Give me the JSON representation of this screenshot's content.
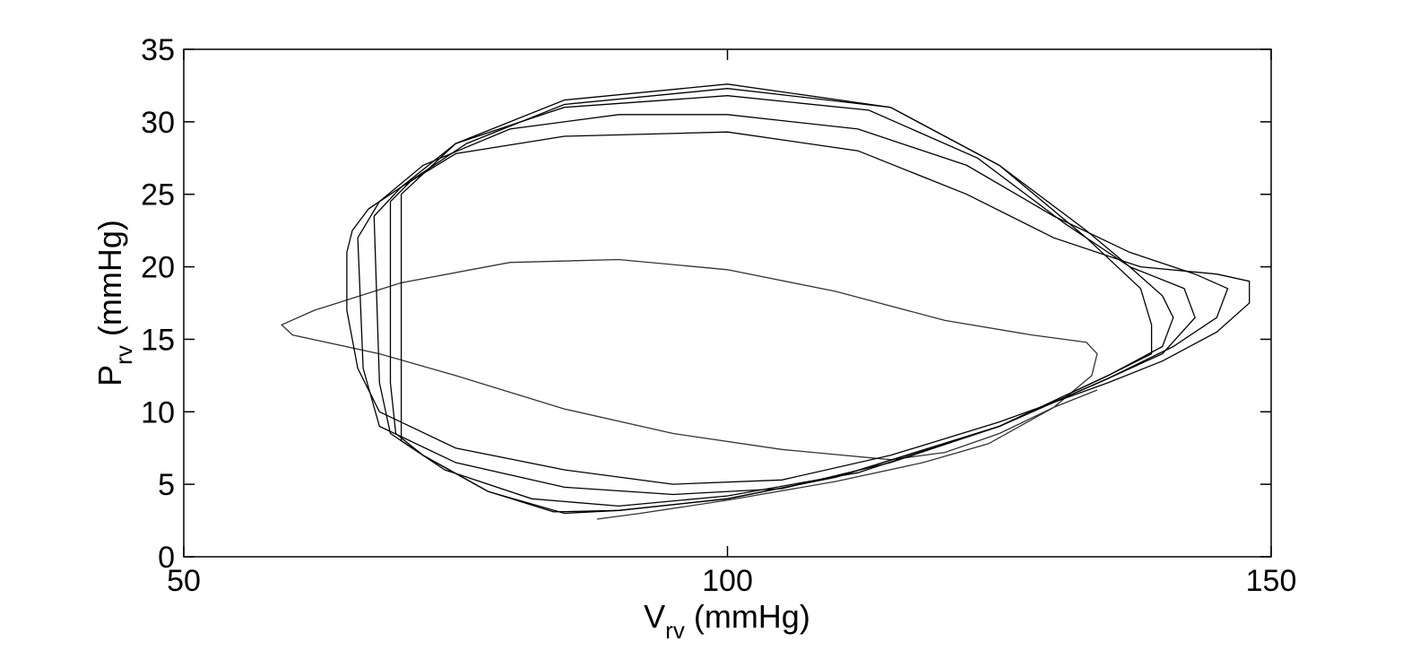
{
  "chart_data": {
    "type": "line",
    "xlabel": [
      "V",
      "rv",
      " (mmHg)"
    ],
    "ylabel": [
      "P",
      "rv",
      " (mmHg)"
    ],
    "xlim": [
      50,
      150
    ],
    "xticks": [
      50,
      100,
      150
    ],
    "ylim": [
      0,
      35
    ],
    "yticks": [
      0,
      5,
      10,
      15,
      20,
      25,
      30,
      35
    ],
    "series": [
      {
        "color": "#333333",
        "x": [
          88,
          92,
          100,
          110,
          118,
          124,
          130,
          133.5,
          134,
          133,
          128,
          120,
          110,
          100,
          90,
          80,
          70,
          62,
          59,
          60,
          68,
          75,
          85,
          95,
          105,
          115,
          120,
          125,
          130,
          134
        ],
        "values": [
          2.6,
          3,
          3.9,
          5.2,
          6.5,
          7.8,
          10.3,
          12.5,
          14,
          14.8,
          15.3,
          16.3,
          18.3,
          19.8,
          20.5,
          20.3,
          18.9,
          17,
          16,
          15.3,
          14,
          12.5,
          10.2,
          8.5,
          7.4,
          6.7,
          7.2,
          8.5,
          10.3,
          11.5
        ]
      },
      {
        "color": "#000000",
        "x": [
          65,
          65.5,
          67,
          70,
          75,
          85,
          100,
          112,
          122,
          130,
          138,
          145,
          148,
          148,
          145,
          140,
          135,
          125,
          115,
          105,
          95,
          85,
          75,
          68,
          66,
          65,
          65
        ],
        "values": [
          21,
          22.5,
          24,
          25.5,
          27.8,
          29,
          29.3,
          28,
          25,
          22,
          20,
          19.5,
          19,
          17.5,
          15.5,
          13.5,
          12,
          9.3,
          7,
          5.3,
          5,
          6,
          7.5,
          10,
          13,
          17,
          21
        ]
      },
      {
        "color": "#000000",
        "x": [
          66,
          68,
          72,
          80,
          90,
          100,
          112,
          122,
          130,
          137,
          143,
          146,
          145,
          141,
          135,
          125,
          115,
          105,
          95,
          85,
          75,
          68,
          66.5,
          66
        ],
        "values": [
          22,
          24.5,
          27,
          29.5,
          30.5,
          30.5,
          29.5,
          27,
          23.5,
          21,
          19.5,
          18.5,
          16.5,
          14.5,
          12.3,
          9,
          6.5,
          4.7,
          4.3,
          4.8,
          6.5,
          9,
          13,
          22
        ]
      },
      {
        "color": "#000000",
        "x": [
          67.5,
          70,
          75,
          85,
          100,
          113,
          123,
          131,
          137,
          142,
          143,
          140,
          135,
          125,
          112,
          100,
          90,
          82,
          74,
          69,
          68,
          67.5
        ],
        "values": [
          23.5,
          25.5,
          28.5,
          31,
          31.8,
          30.8,
          27.5,
          23,
          20,
          18.5,
          16.5,
          14,
          12.3,
          9,
          5.8,
          4.2,
          3.5,
          4,
          6,
          8.5,
          12,
          23.5
        ]
      },
      {
        "color": "#000000",
        "x": [
          69,
          71,
          76,
          85,
          100,
          115,
          125,
          133,
          137,
          140,
          141,
          140,
          135,
          125,
          110,
          100,
          90,
          84,
          78,
          72,
          69.5,
          69,
          69
        ],
        "values": [
          24.5,
          26,
          28.5,
          31.2,
          32.3,
          31,
          27,
          22.5,
          20,
          18,
          16.5,
          14.5,
          12.5,
          9,
          5.5,
          4,
          3.2,
          3.1,
          4.5,
          7,
          8.5,
          12,
          24.5
        ]
      },
      {
        "color": "#000000",
        "x": [
          70,
          75,
          85,
          100,
          115,
          125,
          133,
          138,
          139,
          139,
          135,
          125,
          110,
          100,
          90,
          85,
          78,
          72,
          70,
          70
        ],
        "values": [
          25,
          28.5,
          31.5,
          32.6,
          31,
          27,
          22,
          18.5,
          16,
          14,
          12.5,
          9,
          5.5,
          4,
          3.2,
          3,
          4.5,
          7,
          8,
          25
        ]
      }
    ]
  }
}
